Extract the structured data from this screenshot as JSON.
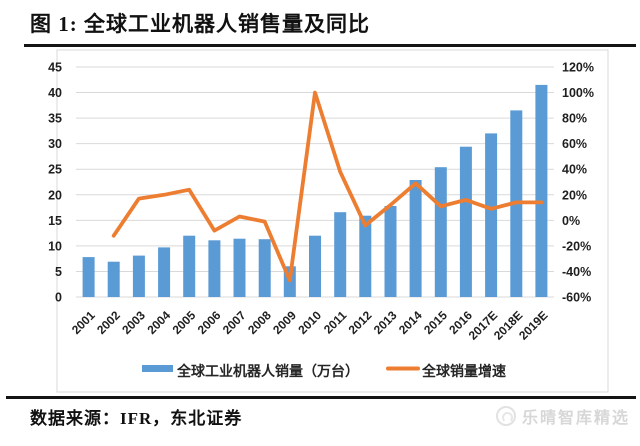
{
  "page": {
    "title": "图 1: 全球工业机器人销售量及同比",
    "source_note": "数据来源：IFR，东北证券",
    "watermark": "乐晴智库精选"
  },
  "chart_data": {
    "type": "bar+line combo",
    "title": "全球工业机器人销售量及同比",
    "categories": [
      "2001",
      "2002",
      "2003",
      "2004",
      "2005",
      "2006",
      "2007",
      "2008",
      "2009",
      "2010",
      "2011",
      "2012",
      "2013",
      "2014",
      "2015",
      "2016",
      "2017E",
      "2018E",
      "2019E"
    ],
    "series": [
      {
        "name": "全球工业机器人销量（万台）",
        "type": "bar",
        "axis": "left",
        "color": "#5b9bd5",
        "values": [
          7.8,
          6.9,
          8.1,
          9.7,
          12.0,
          11.1,
          11.4,
          11.3,
          6.0,
          12.0,
          16.6,
          15.9,
          17.8,
          22.9,
          25.4,
          29.4,
          32.0,
          36.5,
          41.5
        ]
      },
      {
        "name": "全球销量增速",
        "type": "line",
        "axis": "right",
        "color": "#ed7d31",
        "values": [
          null,
          -12,
          17,
          20,
          24,
          -8,
          3,
          -1,
          -47,
          100,
          38,
          -4,
          12,
          29,
          11,
          16,
          9,
          14,
          14
        ]
      }
    ],
    "left_axis": {
      "min": 0,
      "max": 45,
      "step": 5,
      "tick_labels": [
        "45",
        "40",
        "35",
        "30",
        "25",
        "20",
        "15",
        "10",
        "5",
        "0"
      ]
    },
    "right_axis": {
      "min": -60,
      "max": 120,
      "step": 20,
      "format": "percent",
      "tick_labels": [
        "120%",
        "100%",
        "80%",
        "60%",
        "40%",
        "20%",
        "0%",
        "-20%",
        "-40%",
        "-60%"
      ]
    },
    "grid": true,
    "legend_position": "bottom",
    "colors": {
      "bar": "#5b9bd5",
      "line": "#ed7d31",
      "gridline": "#d9d9d9",
      "plot_border": "#d8d8d8",
      "tick_text": "#1f1f1f"
    }
  }
}
